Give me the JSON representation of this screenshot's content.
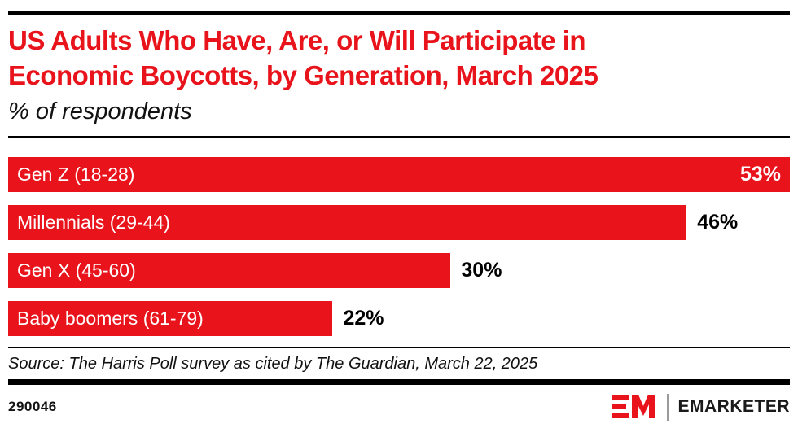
{
  "header": {
    "title_line1": "US Adults Who Have, Are, or Will Participate in",
    "title_line2": "Economic Boycotts, by Generation, March 2025",
    "subtitle": "% of respondents"
  },
  "chart_data": {
    "type": "bar",
    "orientation": "horizontal",
    "title": "US Adults Who Have, Are, or Will Participate in Economic Boycotts, by Generation, March 2025",
    "subtitle": "% of respondents",
    "categories": [
      "Gen Z (18-28)",
      "Millennials (29-44)",
      "Gen X (45-60)",
      "Baby boomers (61-79)"
    ],
    "values": [
      53,
      46,
      30,
      22
    ],
    "value_labels": [
      "53%",
      "46%",
      "30%",
      "22%"
    ],
    "value_label_inside": [
      true,
      false,
      false,
      false
    ],
    "unit": "%",
    "xlim": [
      0,
      53
    ],
    "bar_color": "#e8131b",
    "grid": false,
    "legend": "none"
  },
  "footer": {
    "source": "Source: The Harris Poll survey as cited by The Guardian, March 22, 2025",
    "chart_id": "290046",
    "logo_text": "EMARKETER"
  },
  "colors": {
    "accent_red": "#e8131b",
    "rule_black": "#000000",
    "text_dark": "#111111"
  }
}
